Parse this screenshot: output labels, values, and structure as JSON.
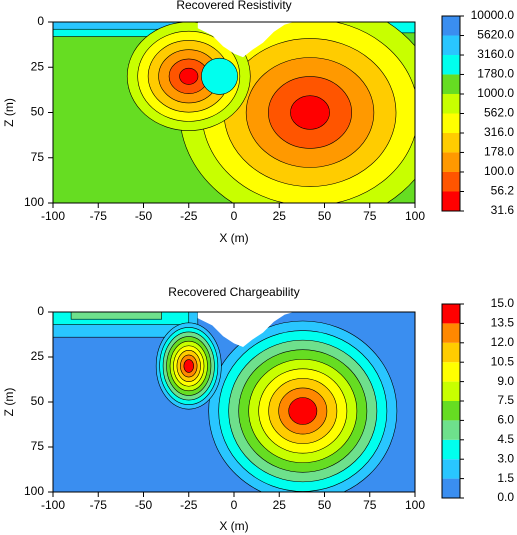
{
  "chart_data": [
    {
      "type": "contour",
      "title": "Recovered Resistivity",
      "xlabel": "X (m)",
      "ylabel": "Z (m)",
      "xlim": [
        -100,
        100
      ],
      "xticks": [
        -100,
        -75,
        -50,
        -25,
        0,
        25,
        50,
        75,
        100
      ],
      "ylim": [
        0,
        100
      ],
      "yticks": [
        0,
        25,
        50,
        75,
        100
      ],
      "y_inverted": true,
      "colorbar_log": true,
      "colorbar_ticks": [
        {
          "value": 31.6,
          "label": "31.6"
        },
        {
          "value": 56.2,
          "label": "56.2"
        },
        {
          "value": 100,
          "label": "100.0"
        },
        {
          "value": 178,
          "label": "178.0"
        },
        {
          "value": 316,
          "label": "316.0"
        },
        {
          "value": 562,
          "label": "562.0"
        },
        {
          "value": 1000,
          "label": "1000.0"
        },
        {
          "value": 1780,
          "label": "1780.0"
        },
        {
          "value": 3160,
          "label": "3160.0"
        },
        {
          "value": 5620,
          "label": "5620.0"
        },
        {
          "value": 10000,
          "label": "10000.0"
        }
      ],
      "colors": [
        "#ff0000",
        "#ff5500",
        "#ff9900",
        "#ffcc00",
        "#ffff00",
        "#c8ff00",
        "#66dd22",
        "#00ffee",
        "#29c6ff",
        "#3a8ef0"
      ]
    },
    {
      "type": "contour",
      "title": "Recovered Chargeability",
      "xlabel": "X (m)",
      "ylabel": "Z (m)",
      "xlim": [
        -100,
        100
      ],
      "xticks": [
        -100,
        -75,
        -50,
        -25,
        0,
        25,
        50,
        75,
        100
      ],
      "ylim": [
        0,
        100
      ],
      "yticks": [
        0,
        25,
        50,
        75,
        100
      ],
      "y_inverted": true,
      "colorbar_log": false,
      "colorbar_ticks": [
        {
          "value": 0,
          "label": "0.0"
        },
        {
          "value": 1.5,
          "label": "1.5"
        },
        {
          "value": 3,
          "label": "3.0"
        },
        {
          "value": 4.5,
          "label": "4.5"
        },
        {
          "value": 6,
          "label": "6.0"
        },
        {
          "value": 7.5,
          "label": "7.5"
        },
        {
          "value": 9,
          "label": "9.0"
        },
        {
          "value": 10.5,
          "label": "10.5"
        },
        {
          "value": 12,
          "label": "12.0"
        },
        {
          "value": 13.5,
          "label": "13.5"
        },
        {
          "value": 15,
          "label": "15.0"
        }
      ],
      "colors": [
        "#3a8ef0",
        "#29c6ff",
        "#00ffee",
        "#6ee08c",
        "#66dd22",
        "#c8ff00",
        "#ffff00",
        "#ffcc00",
        "#ff8800",
        "#ff0000"
      ]
    }
  ]
}
